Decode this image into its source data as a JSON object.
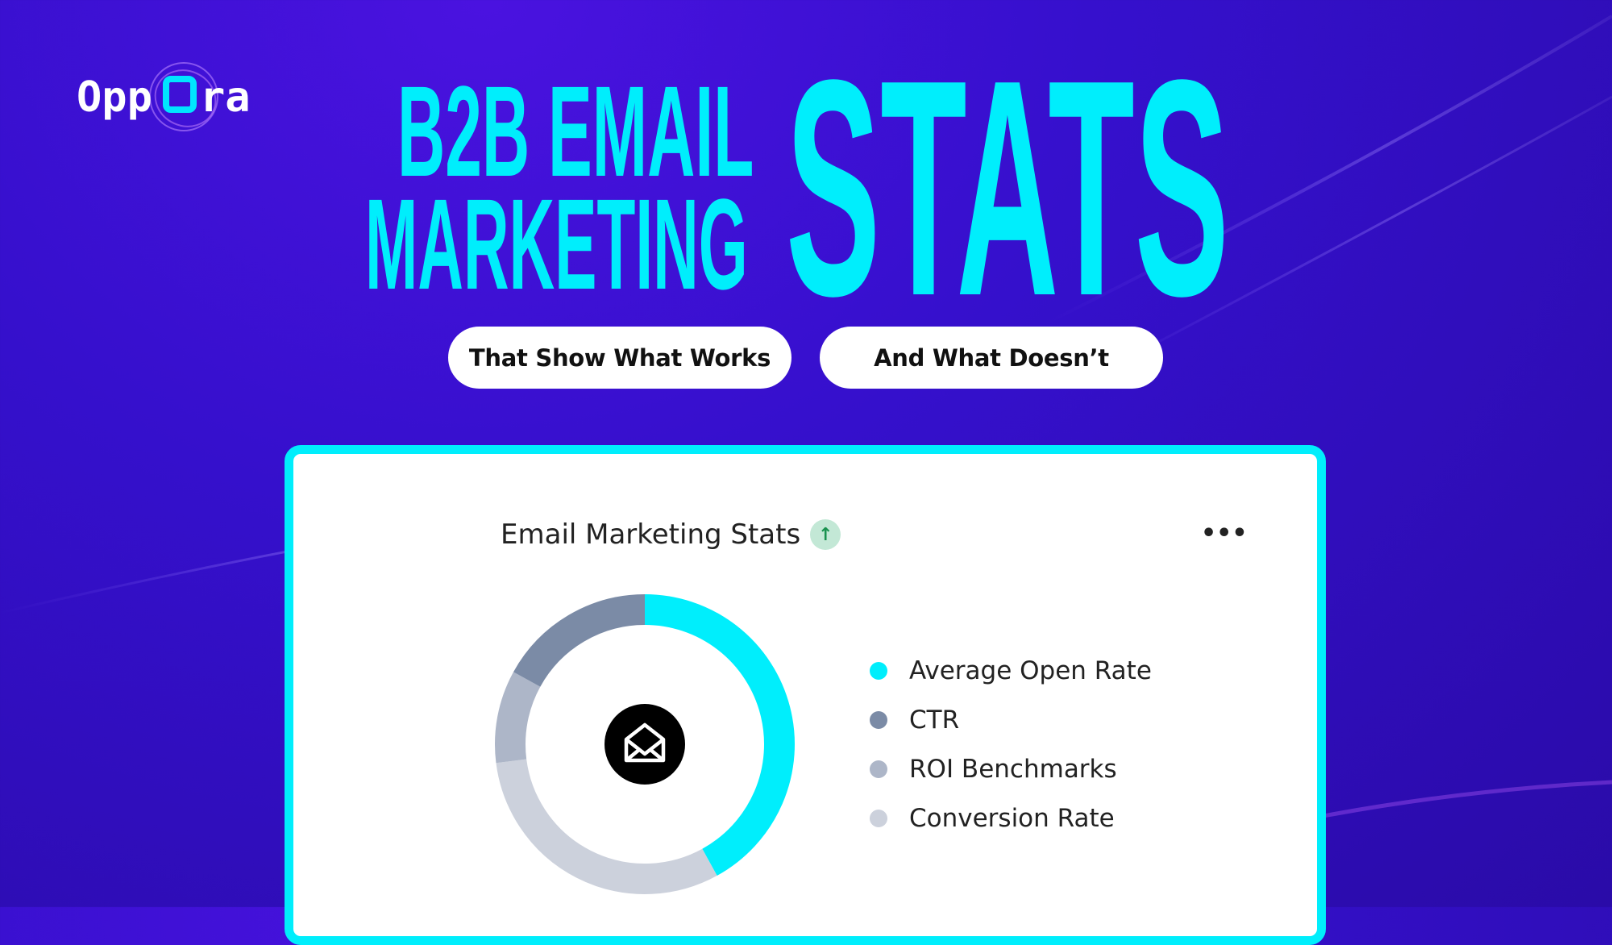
{
  "brand": {
    "logo_text_pre": "Opp",
    "logo_text_o": "O",
    "logo_text_post": "ra"
  },
  "headline": {
    "line1": "B2B EMAIL",
    "line2": "MARKETING",
    "big": "STATS",
    "color": "#00eefc"
  },
  "pills": [
    "That Show What Works",
    "And What Doesn’t"
  ],
  "card": {
    "title": "Email Marketing Stats",
    "badge_icon": "arrow-up-icon",
    "badge_glyph": "↑",
    "more_glyph": "•••",
    "center_icon": "envelope-open-icon"
  },
  "chart_data": {
    "type": "pie",
    "donut": true,
    "categories": [
      "Average Open Rate",
      "CTR",
      "ROI Benchmarks",
      "Conversion Rate"
    ],
    "values": [
      42,
      17,
      10,
      31
    ],
    "colors": [
      "#00eefc",
      "#7b8ba6",
      "#adb6c8",
      "#ccd1dc"
    ],
    "order_clockwise_from_top": [
      "Average Open Rate",
      "Conversion Rate",
      "ROI Benchmarks",
      "CTR"
    ]
  }
}
